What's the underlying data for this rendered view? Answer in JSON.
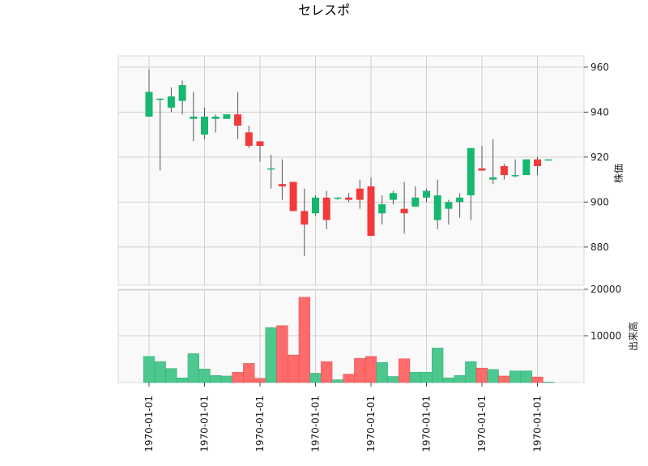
{
  "chart_data": {
    "type": "candlestick",
    "title": "セレスポ",
    "price_axis": {
      "label": "株価",
      "ylim": [
        863,
        965
      ],
      "ticks": [
        880,
        900,
        920,
        940,
        960
      ]
    },
    "volume_axis": {
      "label": "出来高",
      "ylim": [
        0,
        20000
      ],
      "ticks": [
        10000,
        20000
      ]
    },
    "x_tick_labels": [
      "1970-01-01",
      "1970-01-01",
      "1970-01-01",
      "1970-01-01",
      "1970-01-01",
      "1970-01-01",
      "1970-01-01",
      "1970-01-01"
    ],
    "colors": {
      "up": "#14b86e",
      "down": "#f23a3a",
      "up_volume": "#4cc88f",
      "down_volume": "#ff6b6b",
      "wick": "#555555",
      "panel_bg": "#f9f9f9",
      "grid": "#d0d0d0"
    },
    "grid": true,
    "candles": [
      {
        "open": 938,
        "high": 959,
        "low": 938,
        "close": 949,
        "volume": 5600
      },
      {
        "open": 946,
        "high": 946,
        "low": 914,
        "close": 946,
        "volume": 4500
      },
      {
        "open": 942,
        "high": 951,
        "low": 940,
        "close": 947,
        "volume": 3000
      },
      {
        "open": 945,
        "high": 954,
        "low": 939,
        "close": 952,
        "volume": 1000
      },
      {
        "open": 937,
        "high": 949,
        "low": 927,
        "close": 938,
        "volume": 6200
      },
      {
        "open": 930,
        "high": 942,
        "low": 928,
        "close": 938,
        "volume": 2900
      },
      {
        "open": 937,
        "high": 939,
        "low": 931,
        "close": 938,
        "volume": 1500
      },
      {
        "open": 937,
        "high": 939,
        "low": 937,
        "close": 939,
        "volume": 1400
      },
      {
        "open": 939,
        "high": 949,
        "low": 928,
        "close": 934,
        "volume": 2200
      },
      {
        "open": 931,
        "high": 934,
        "low": 924,
        "close": 925,
        "volume": 4100
      },
      {
        "open": 927,
        "high": 927,
        "low": 918,
        "close": 925,
        "volume": 900
      },
      {
        "open": 915,
        "high": 921,
        "low": 906,
        "close": 915,
        "volume": 11800
      },
      {
        "open": 908,
        "high": 919,
        "low": 901,
        "close": 907,
        "volume": 12200
      },
      {
        "open": 909,
        "high": 909,
        "low": 896,
        "close": 896,
        "volume": 5900
      },
      {
        "open": 896,
        "high": 906,
        "low": 876,
        "close": 890,
        "volume": 18300
      },
      {
        "open": 895,
        "high": 903,
        "low": 894,
        "close": 902,
        "volume": 2000
      },
      {
        "open": 902,
        "high": 905,
        "low": 888,
        "close": 892,
        "volume": 4500
      },
      {
        "open": 902,
        "high": 902,
        "low": 901,
        "close": 902,
        "volume": 600
      },
      {
        "open": 902,
        "high": 904,
        "low": 900,
        "close": 901,
        "volume": 1800
      },
      {
        "open": 906,
        "high": 910,
        "low": 897,
        "close": 901,
        "volume": 5200
      },
      {
        "open": 907,
        "high": 911,
        "low": 885,
        "close": 885,
        "volume": 5600
      },
      {
        "open": 895,
        "high": 903,
        "low": 890,
        "close": 899,
        "volume": 4300
      },
      {
        "open": 901,
        "high": 905,
        "low": 899,
        "close": 904,
        "volume": 1300
      },
      {
        "open": 897,
        "high": 909,
        "low": 886,
        "close": 895,
        "volume": 5100
      },
      {
        "open": 898,
        "high": 907,
        "low": 898,
        "close": 902,
        "volume": 2200
      },
      {
        "open": 902,
        "high": 906,
        "low": 900,
        "close": 905,
        "volume": 2200
      },
      {
        "open": 892,
        "high": 910,
        "low": 888,
        "close": 903,
        "volume": 7400
      },
      {
        "open": 897,
        "high": 901,
        "low": 890,
        "close": 900,
        "volume": 1000
      },
      {
        "open": 900,
        "high": 904,
        "low": 893,
        "close": 902,
        "volume": 1500
      },
      {
        "open": 903,
        "high": 924,
        "low": 892,
        "close": 924,
        "volume": 4500
      },
      {
        "open": 915,
        "high": 925,
        "low": 914,
        "close": 914,
        "volume": 3100
      },
      {
        "open": 910,
        "high": 928,
        "low": 908,
        "close": 911,
        "volume": 2800
      },
      {
        "open": 916,
        "high": 917,
        "low": 910,
        "close": 912,
        "volume": 1400
      },
      {
        "open": 912,
        "high": 919,
        "low": 911,
        "close": 912,
        "volume": 2500
      },
      {
        "open": 912,
        "high": 919,
        "low": 912,
        "close": 919,
        "volume": 2500
      },
      {
        "open": 919,
        "high": 920,
        "low": 912,
        "close": 916,
        "volume": 1200
      },
      {
        "open": 919,
        "high": 919,
        "low": 919,
        "close": 919,
        "volume": 100
      }
    ]
  }
}
